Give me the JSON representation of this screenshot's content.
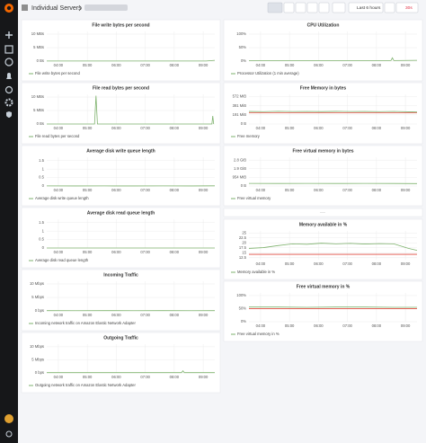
{
  "header": {
    "title": "Individual Servers",
    "time_range": "Last 6 hours",
    "refresh": "30s"
  },
  "chart_data": [
    {
      "type": "line",
      "title": "File write bytes per second",
      "xlim": [
        3.6,
        9.4
      ],
      "xticks": [
        {
          "value": 4,
          "label": "04:00"
        },
        {
          "value": 5,
          "label": "05:00"
        },
        {
          "value": 6,
          "label": "06:00"
        },
        {
          "value": 7,
          "label": "07:00"
        },
        {
          "value": 8,
          "label": "08:00"
        },
        {
          "value": 9,
          "label": "09:00"
        }
      ],
      "ylim": [
        0,
        11
      ],
      "yticks": [
        {
          "value": 10,
          "label": "10 MBs"
        },
        {
          "value": 5,
          "label": "5 MBs"
        },
        {
          "value": 0,
          "label": "0 Bs"
        }
      ],
      "grid": true,
      "series": [
        {
          "name": "File write bytes per second",
          "color": "#7eb26d",
          "x": [
            3.6,
            4.1,
            4.6,
            5.1,
            5.6,
            6.1,
            6.6,
            7.1,
            7.6,
            8.1,
            8.6,
            9.1,
            9.4
          ],
          "values": [
            0.05,
            0.03,
            0.05,
            0.03,
            0.04,
            0.03,
            0.05,
            0.03,
            0.04,
            0.03,
            0.05,
            0.03,
            0.3
          ]
        }
      ]
    },
    {
      "type": "line",
      "title": "File read bytes per second",
      "xlim": [
        3.6,
        9.4
      ],
      "xticks": [
        {
          "value": 4,
          "label": "04:00"
        },
        {
          "value": 5,
          "label": "05:00"
        },
        {
          "value": 6,
          "label": "06:00"
        },
        {
          "value": 7,
          "label": "07:00"
        },
        {
          "value": 8,
          "label": "08:00"
        },
        {
          "value": 9,
          "label": "09:00"
        }
      ],
      "ylim": [
        0,
        11
      ],
      "yticks": [
        {
          "value": 10,
          "label": "10 MBs"
        },
        {
          "value": 5,
          "label": "5 MBs"
        },
        {
          "value": 0,
          "label": "0 Bs"
        }
      ],
      "grid": true,
      "series": [
        {
          "name": "File read bytes per second",
          "color": "#7eb26d",
          "x": [
            3.6,
            4.6,
            5.25,
            5.3,
            5.35,
            6.6,
            7.6,
            8.6,
            9.3,
            9.33,
            9.36
          ],
          "values": [
            0,
            0,
            0,
            10.5,
            0,
            0,
            0,
            0,
            0,
            3,
            0
          ]
        }
      ]
    },
    {
      "type": "line",
      "title": "Average disk write queue length",
      "xlim": [
        3.6,
        9.4
      ],
      "xticks": [
        {
          "value": 4,
          "label": "04:00"
        },
        {
          "value": 5,
          "label": "05:00"
        },
        {
          "value": 6,
          "label": "06:00"
        },
        {
          "value": 7,
          "label": "07:00"
        },
        {
          "value": 8,
          "label": "08:00"
        },
        {
          "value": 9,
          "label": "09:00"
        }
      ],
      "ylim": [
        0,
        1.7
      ],
      "yticks": [
        1.5,
        1,
        0.5,
        0
      ],
      "grid": true,
      "series": [
        {
          "name": "Average disk write queue length",
          "color": "#7eb26d",
          "x": [
            3.6,
            4.6,
            5.6,
            6.6,
            7.6,
            8.6,
            9.4
          ],
          "values": [
            0.005,
            0.004,
            0.005,
            0.004,
            0.005,
            0.004,
            0.01
          ]
        }
      ]
    },
    {
      "type": "line",
      "title": "Average disk read queue length",
      "xlim": [
        3.6,
        9.4
      ],
      "xticks": [
        {
          "value": 4,
          "label": "04:00"
        },
        {
          "value": 5,
          "label": "05:00"
        },
        {
          "value": 6,
          "label": "06:00"
        },
        {
          "value": 7,
          "label": "07:00"
        },
        {
          "value": 8,
          "label": "08:00"
        },
        {
          "value": 9,
          "label": "09:00"
        }
      ],
      "ylim": [
        0,
        1.7
      ],
      "yticks": [
        1.5,
        1,
        0.5,
        0
      ],
      "grid": true,
      "series": [
        {
          "name": "Average disk read queue length",
          "color": "#7eb26d",
          "x": [
            3.6,
            4.6,
            5.6,
            6.6,
            7.6,
            8.6,
            9.4
          ],
          "values": [
            0,
            0,
            0,
            0,
            0,
            0,
            0
          ]
        }
      ]
    },
    {
      "type": "line",
      "title": "Incoming Traffic",
      "xlim": [
        3.6,
        9.4
      ],
      "xticks": [
        {
          "value": 4,
          "label": "04:00"
        },
        {
          "value": 5,
          "label": "05:00"
        },
        {
          "value": 6,
          "label": "06:00"
        },
        {
          "value": 7,
          "label": "07:00"
        },
        {
          "value": 8,
          "label": "08:00"
        },
        {
          "value": 9,
          "label": "09:00"
        }
      ],
      "ylim": [
        0,
        11
      ],
      "yticks": [
        {
          "value": 10,
          "label": "10 Mbps"
        },
        {
          "value": 5,
          "label": "5 Mbps"
        },
        {
          "value": 0,
          "label": "0 bps"
        }
      ],
      "grid": true,
      "series": [
        {
          "name": "Incoming network traffic on Amazon Elastic Network Adapter",
          "color": "#7eb26d",
          "x": [
            3.6,
            4.6,
            5.6,
            6.6,
            7.6,
            8.6,
            9.4
          ],
          "values": [
            0.1,
            0.08,
            0.1,
            0.09,
            0.1,
            0.08,
            0.1
          ]
        }
      ]
    },
    {
      "type": "line",
      "title": "Outgoing Traffic",
      "xlim": [
        3.6,
        9.4
      ],
      "xticks": [
        {
          "value": 4,
          "label": "04:00"
        },
        {
          "value": 5,
          "label": "05:00"
        },
        {
          "value": 6,
          "label": "06:00"
        },
        {
          "value": 7,
          "label": "07:00"
        },
        {
          "value": 8,
          "label": "08:00"
        },
        {
          "value": 9,
          "label": "09:00"
        }
      ],
      "ylim": [
        0,
        11
      ],
      "yticks": [
        {
          "value": 10,
          "label": "10 Mbps"
        },
        {
          "value": 5,
          "label": "5 Mbps"
        },
        {
          "value": 0,
          "label": "0 bps"
        }
      ],
      "grid": true,
      "series": [
        {
          "name": "Outgoing network traffic on Amazon Elastic Network Adapter",
          "color": "#7eb26d",
          "x": [
            3.6,
            4.6,
            5.6,
            6.6,
            7.6,
            8.25,
            8.3,
            8.35,
            9.4
          ],
          "values": [
            0.1,
            0.1,
            0.1,
            0.1,
            0.1,
            0.1,
            0.8,
            0.1,
            0.1
          ]
        }
      ]
    },
    {
      "type": "line",
      "title": "CPU Utilization",
      "xlim": [
        3.6,
        9.4
      ],
      "xticks": [
        {
          "value": 4,
          "label": "04:00"
        },
        {
          "value": 5,
          "label": "05:00"
        },
        {
          "value": 6,
          "label": "06:00"
        },
        {
          "value": 7,
          "label": "07:00"
        },
        {
          "value": 8,
          "label": "08:00"
        },
        {
          "value": 9,
          "label": "09:00"
        }
      ],
      "ylim": [
        0,
        110
      ],
      "yticks": [
        {
          "value": 100,
          "label": "100%"
        },
        {
          "value": 50,
          "label": "50%"
        },
        {
          "value": 0,
          "label": "0%"
        }
      ],
      "grid": true,
      "series": [
        {
          "name": "Processor Utilization (1 min average)",
          "color": "#7eb26d",
          "x": [
            3.6,
            4.6,
            5.6,
            6.6,
            7.6,
            8.5,
            8.55,
            8.6,
            9.4
          ],
          "values": [
            2,
            2,
            2,
            2,
            2,
            2,
            12,
            2,
            3
          ]
        }
      ]
    },
    {
      "type": "line",
      "title": "Free Memory in bytes",
      "xlim": [
        3.6,
        9.4
      ],
      "xticks": [
        {
          "value": 4,
          "label": "04:00"
        },
        {
          "value": 5,
          "label": "05:00"
        },
        {
          "value": 6,
          "label": "06:00"
        },
        {
          "value": 7,
          "label": "07:00"
        },
        {
          "value": 8,
          "label": "08:00"
        },
        {
          "value": 9,
          "label": "09:00"
        }
      ],
      "ylim": [
        0,
        620
      ],
      "yticks": [
        {
          "value": 572.2,
          "label": "572 MiB"
        },
        {
          "value": 381.5,
          "label": "381 MiB"
        },
        {
          "value": 190.7,
          "label": "191 MiB"
        },
        {
          "value": 0,
          "label": "0 B"
        }
      ],
      "grid": true,
      "threshold": 235,
      "threshold_color": "#e24d42",
      "series": [
        {
          "name": "Free memory",
          "color": "#7eb26d",
          "x": [
            3.6,
            4.1,
            4.6,
            5.1,
            5.6,
            6.1,
            6.6,
            7.1,
            7.6,
            8.1,
            8.6,
            9.1,
            9.4
          ],
          "values": [
            262,
            258,
            265,
            260,
            263,
            259,
            264,
            261,
            262,
            258,
            263,
            255,
            250
          ]
        }
      ]
    },
    {
      "type": "line",
      "title": "Free virtual memory in bytes",
      "xlim": [
        3.6,
        9.4
      ],
      "xticks": [
        {
          "value": 4,
          "label": "04:00"
        },
        {
          "value": 5,
          "label": "05:00"
        },
        {
          "value": 6,
          "label": "06:00"
        },
        {
          "value": 7,
          "label": "07:00"
        },
        {
          "value": 8,
          "label": "08:00"
        },
        {
          "value": 9,
          "label": "09:00"
        }
      ],
      "ylim": [
        0,
        3.1
      ],
      "yticks": [
        {
          "value": 2.794,
          "label": "2.8 GiB"
        },
        {
          "value": 1.863,
          "label": "1.9 GiB"
        },
        {
          "value": 0.9316,
          "label": "954 MiB"
        },
        {
          "value": 0,
          "label": "0 B"
        }
      ],
      "grid": true,
      "series": [
        {
          "name": "Free virtual memory",
          "color": "#7eb26d",
          "x": [
            3.6,
            4.6,
            5.6,
            6.6,
            7.6,
            8.6,
            9.4
          ],
          "values": [
            0.28,
            0.27,
            0.28,
            0.27,
            0.28,
            0.27,
            0.26
          ]
        }
      ]
    },
    {
      "type": "line",
      "title": "Memory available in %",
      "xlim": [
        3.6,
        9.4
      ],
      "xticks": [
        {
          "value": 4,
          "label": "04:00"
        },
        {
          "value": 5,
          "label": "05:00"
        },
        {
          "value": 6,
          "label": "06:00"
        },
        {
          "value": 7,
          "label": "07:00"
        },
        {
          "value": 8,
          "label": "08:00"
        },
        {
          "value": 9,
          "label": "09:00"
        }
      ],
      "ylim": [
        11.5,
        26
      ],
      "yticks": [
        25,
        22.5,
        20,
        17.5,
        15,
        12.5
      ],
      "grid": true,
      "threshold": 14.2,
      "threshold_color": "#e24d42",
      "series": [
        {
          "name": "Memory available in %",
          "color": "#7eb26d",
          "x": [
            3.6,
            4.1,
            4.6,
            5.1,
            5.6,
            6.1,
            6.6,
            7.1,
            7.6,
            8.1,
            8.6,
            9.1,
            9.4
          ],
          "values": [
            17.2,
            17.6,
            18.6,
            19.5,
            19.3,
            19.8,
            19.5,
            19.7,
            19.4,
            19.6,
            19.5,
            17.2,
            16.2
          ]
        }
      ]
    },
    {
      "type": "line",
      "title": "Free virtual memory in %",
      "xlim": [
        3.6,
        9.4
      ],
      "xticks": [
        {
          "value": 4,
          "label": "04:00"
        },
        {
          "value": 5,
          "label": "05:00"
        },
        {
          "value": 6,
          "label": "06:00"
        },
        {
          "value": 7,
          "label": "07:00"
        },
        {
          "value": 8,
          "label": "08:00"
        },
        {
          "value": 9,
          "label": "09:00"
        }
      ],
      "ylim": [
        0,
        110
      ],
      "yticks": [
        {
          "value": 100,
          "label": "100%"
        },
        {
          "value": 50,
          "label": "50%"
        },
        {
          "value": 0,
          "label": "0%"
        }
      ],
      "grid": true,
      "threshold": 50,
      "threshold_color": "#e24d42",
      "series": [
        {
          "name": "Free virtual memory in %",
          "color": "#7eb26d",
          "x": [
            3.6,
            4.6,
            5.6,
            6.6,
            7.6,
            8.6,
            9.4
          ],
          "values": [
            56,
            56,
            55,
            56,
            56,
            55,
            55
          ]
        }
      ]
    }
  ]
}
